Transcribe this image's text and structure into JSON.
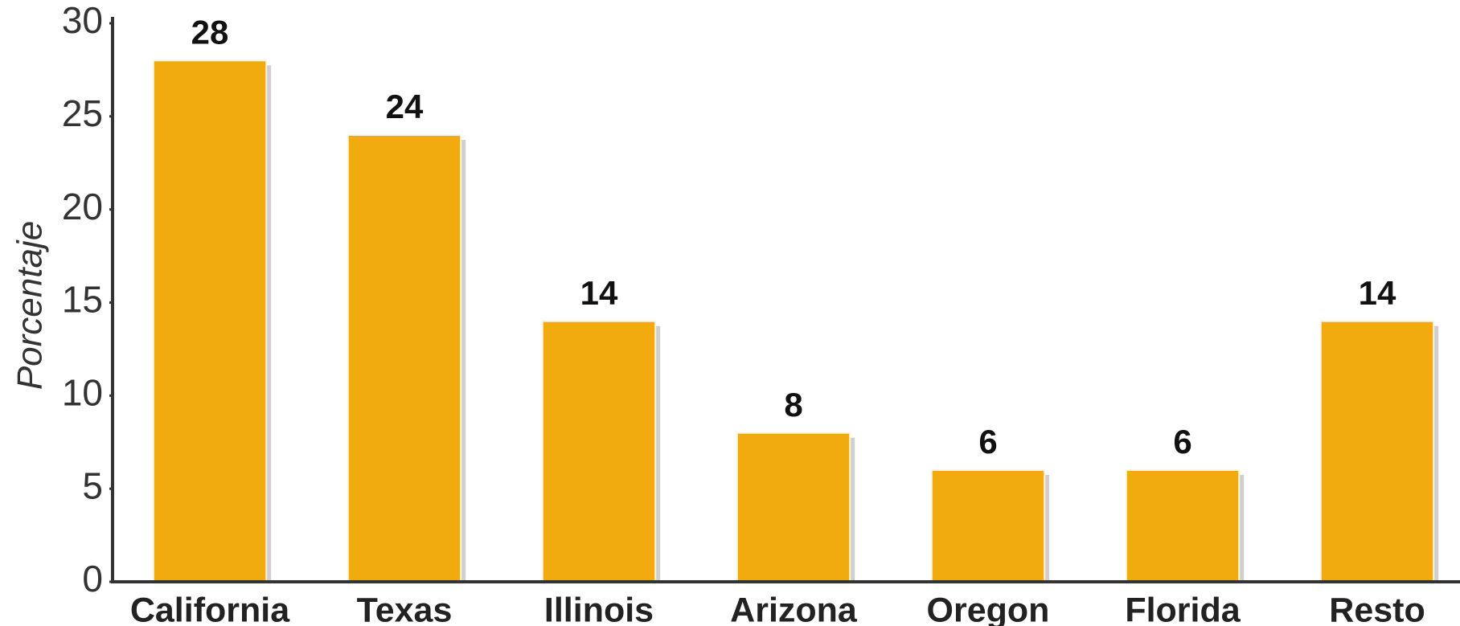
{
  "chart_data": {
    "type": "bar",
    "y_label": "Porcentaje",
    "categories": [
      "California",
      "Texas",
      "Illinois",
      "Arizona",
      "Oregon",
      "Florida",
      "Resto"
    ],
    "values": [
      28,
      24,
      14,
      8,
      6,
      6,
      14
    ],
    "color": "#f2ab0e",
    "ylim": [
      0,
      30
    ],
    "yticks": [
      0,
      5,
      10,
      15,
      20,
      25,
      30
    ],
    "grid": false
  }
}
